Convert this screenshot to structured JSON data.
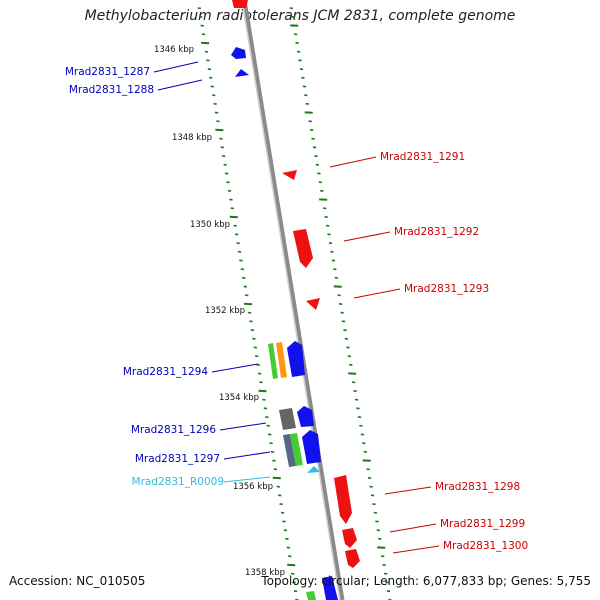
{
  "title": "Methylobacterium radiotolerans JCM 2831, complete genome",
  "footer": {
    "accession": "Accession: NC_010505",
    "topology": "Topology: circular; Length: 6,077,833 bp; Genes: 5,755"
  },
  "colors": {
    "plus_strand_label": "#0000bb",
    "minus_strand_label": "#cc0000",
    "rna_label": "#33bbdd",
    "backbone": "#8a8a8a",
    "tick": "#1a7a1a"
  },
  "scale_labels": [
    "1346 kbp",
    "1348 kbp",
    "1350 kbp",
    "1352 kbp",
    "1354 kbp",
    "1356 kbp",
    "1358 kbp"
  ],
  "genes_left": [
    {
      "label": "Mrad2831_1287",
      "kind": "cds"
    },
    {
      "label": "Mrad2831_1288",
      "kind": "cds"
    },
    {
      "label": "Mrad2831_1294",
      "kind": "cds"
    },
    {
      "label": "Mrad2831_1296",
      "kind": "cds"
    },
    {
      "label": "Mrad2831_1297",
      "kind": "cds"
    },
    {
      "label": "Mrad2831_R0009",
      "kind": "rna"
    }
  ],
  "genes_right": [
    {
      "label": "Mrad2831_1291"
    },
    {
      "label": "Mrad2831_1292"
    },
    {
      "label": "Mrad2831_1293"
    },
    {
      "label": "Mrad2831_1298"
    },
    {
      "label": "Mrad2831_1299"
    },
    {
      "label": "Mrad2831_1300"
    }
  ]
}
